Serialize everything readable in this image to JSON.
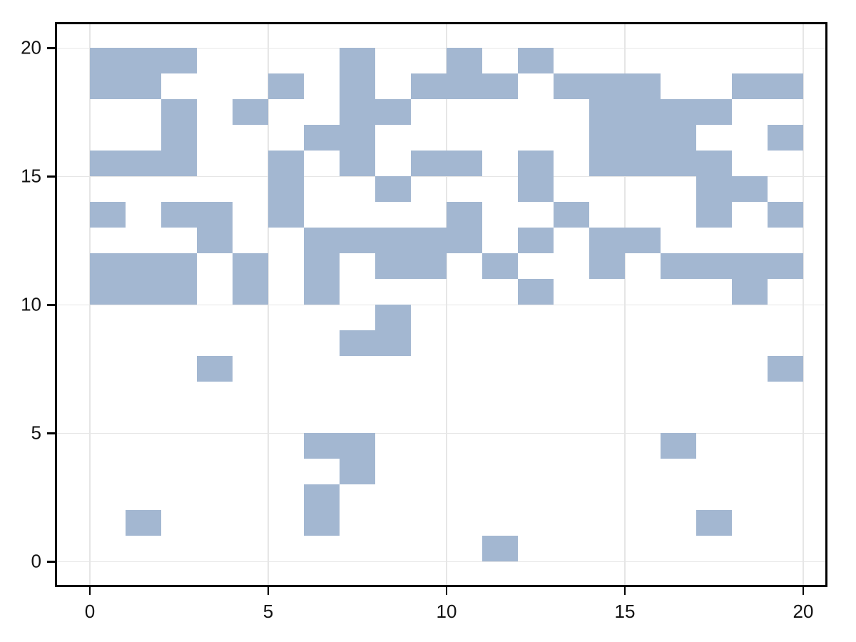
{
  "chart_data": {
    "type": "heatmap",
    "title": "",
    "xlabel": "",
    "ylabel": "",
    "grid": true,
    "legend": false,
    "x_ticks": [
      0,
      5,
      10,
      15,
      20
    ],
    "y_ticks": [
      0,
      5,
      10,
      15,
      20
    ],
    "x_tick_labels": [
      "0",
      "5",
      "10",
      "15",
      "20"
    ],
    "y_tick_labels": [
      "0",
      "5",
      "10",
      "15",
      "20"
    ],
    "xlim": [
      -0.92,
      20.62
    ],
    "ylim": [
      -0.91,
      20.93
    ],
    "grid_positions_x": [
      0,
      5,
      10,
      15,
      20
    ],
    "grid_positions_y": [
      0,
      5,
      10,
      15,
      20
    ],
    "n_cols": 20,
    "n_rows": 20,
    "cell_width": 1,
    "cell_height": 1,
    "fill_color": "#a3b7d1",
    "grid_color": "#e6e6e6",
    "frame_color": "#000000",
    "background_color": "#ffffff",
    "filled_cells": [
      [
        0,
        19
      ],
      [
        1,
        19
      ],
      [
        2,
        19
      ],
      [
        7,
        19
      ],
      [
        10,
        19
      ],
      [
        12,
        19
      ],
      [
        0,
        18
      ],
      [
        1,
        18
      ],
      [
        5,
        18
      ],
      [
        7,
        18
      ],
      [
        9,
        18
      ],
      [
        10,
        18
      ],
      [
        11,
        18
      ],
      [
        13,
        18
      ],
      [
        14,
        18
      ],
      [
        15,
        18
      ],
      [
        18,
        18
      ],
      [
        19,
        18
      ],
      [
        2,
        17
      ],
      [
        4,
        17
      ],
      [
        7,
        17
      ],
      [
        8,
        17
      ],
      [
        14,
        17
      ],
      [
        15,
        17
      ],
      [
        16,
        17
      ],
      [
        17,
        17
      ],
      [
        2,
        16
      ],
      [
        6,
        16
      ],
      [
        7,
        16
      ],
      [
        14,
        16
      ],
      [
        15,
        16
      ],
      [
        16,
        16
      ],
      [
        19,
        16
      ],
      [
        0,
        15
      ],
      [
        1,
        15
      ],
      [
        2,
        15
      ],
      [
        5,
        15
      ],
      [
        7,
        15
      ],
      [
        9,
        15
      ],
      [
        10,
        15
      ],
      [
        12,
        15
      ],
      [
        14,
        15
      ],
      [
        15,
        15
      ],
      [
        16,
        15
      ],
      [
        17,
        15
      ],
      [
        5,
        14
      ],
      [
        8,
        14
      ],
      [
        12,
        14
      ],
      [
        17,
        14
      ],
      [
        18,
        14
      ],
      [
        0,
        13
      ],
      [
        2,
        13
      ],
      [
        3,
        13
      ],
      [
        5,
        13
      ],
      [
        10,
        13
      ],
      [
        13,
        13
      ],
      [
        17,
        13
      ],
      [
        19,
        13
      ],
      [
        3,
        12
      ],
      [
        6,
        12
      ],
      [
        7,
        12
      ],
      [
        8,
        12
      ],
      [
        9,
        12
      ],
      [
        10,
        12
      ],
      [
        12,
        12
      ],
      [
        14,
        12
      ],
      [
        15,
        12
      ],
      [
        0,
        11
      ],
      [
        1,
        11
      ],
      [
        2,
        11
      ],
      [
        4,
        11
      ],
      [
        6,
        11
      ],
      [
        8,
        11
      ],
      [
        9,
        11
      ],
      [
        11,
        11
      ],
      [
        14,
        11
      ],
      [
        16,
        11
      ],
      [
        17,
        11
      ],
      [
        18,
        11
      ],
      [
        19,
        11
      ],
      [
        0,
        10
      ],
      [
        1,
        10
      ],
      [
        2,
        10
      ],
      [
        4,
        10
      ],
      [
        6,
        10
      ],
      [
        12,
        10
      ],
      [
        18,
        10
      ],
      [
        8,
        9
      ],
      [
        7,
        8
      ],
      [
        8,
        8
      ],
      [
        3,
        7
      ],
      [
        19,
        7
      ],
      [
        6,
        4
      ],
      [
        7,
        4
      ],
      [
        16,
        4
      ],
      [
        7,
        3
      ],
      [
        6,
        2
      ],
      [
        1,
        1
      ],
      [
        6,
        1
      ],
      [
        17,
        1
      ],
      [
        11,
        0
      ]
    ]
  }
}
